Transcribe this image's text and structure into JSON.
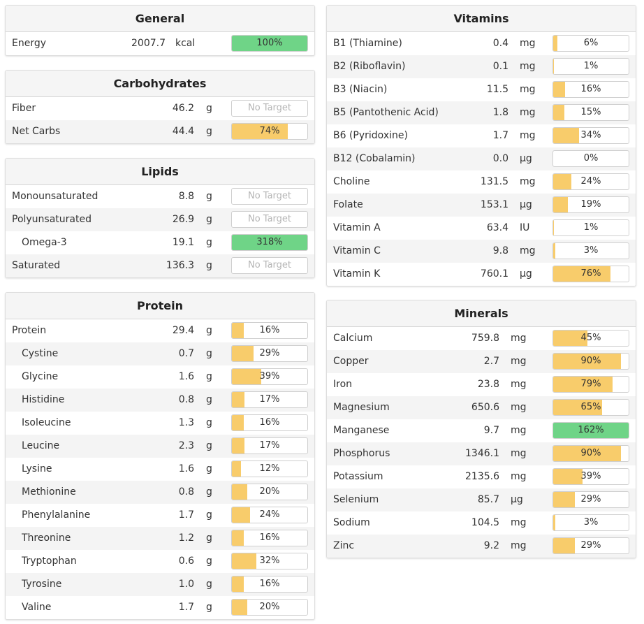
{
  "colors": {
    "green": "#6fd487",
    "orange": "#f8cc6b",
    "none": "#ffffff"
  },
  "general": {
    "title": "General",
    "rows": [
      {
        "name": "Energy",
        "amount": "2007.7",
        "unit": "kcal",
        "pct_label": "100%",
        "fill": 100,
        "color": "green",
        "sub": false
      }
    ]
  },
  "carbohydrates": {
    "title": "Carbohydrates",
    "rows": [
      {
        "name": "Fiber",
        "amount": "46.2",
        "unit": "g",
        "pct_label": "No Target",
        "fill": 0,
        "color": "none",
        "sub": false
      },
      {
        "name": "Net Carbs",
        "amount": "44.4",
        "unit": "g",
        "pct_label": "74%",
        "fill": 74,
        "color": "orange",
        "sub": false
      }
    ]
  },
  "lipids": {
    "title": "Lipids",
    "rows": [
      {
        "name": "Monounsaturated",
        "amount": "8.8",
        "unit": "g",
        "pct_label": "No Target",
        "fill": 0,
        "color": "none",
        "sub": false
      },
      {
        "name": "Polyunsaturated",
        "amount": "26.9",
        "unit": "g",
        "pct_label": "No Target",
        "fill": 0,
        "color": "none",
        "sub": false
      },
      {
        "name": "Omega-3",
        "amount": "19.1",
        "unit": "g",
        "pct_label": "318%",
        "fill": 100,
        "color": "green",
        "sub": true
      },
      {
        "name": "Saturated",
        "amount": "136.3",
        "unit": "g",
        "pct_label": "No Target",
        "fill": 0,
        "color": "none",
        "sub": false
      }
    ]
  },
  "protein": {
    "title": "Protein",
    "rows": [
      {
        "name": "Protein",
        "amount": "29.4",
        "unit": "g",
        "pct_label": "16%",
        "fill": 16,
        "color": "orange",
        "sub": false
      },
      {
        "name": "Cystine",
        "amount": "0.7",
        "unit": "g",
        "pct_label": "29%",
        "fill": 29,
        "color": "orange",
        "sub": true
      },
      {
        "name": "Glycine",
        "amount": "1.6",
        "unit": "g",
        "pct_label": "39%",
        "fill": 39,
        "color": "orange",
        "sub": true
      },
      {
        "name": "Histidine",
        "amount": "0.8",
        "unit": "g",
        "pct_label": "17%",
        "fill": 17,
        "color": "orange",
        "sub": true
      },
      {
        "name": "Isoleucine",
        "amount": "1.3",
        "unit": "g",
        "pct_label": "16%",
        "fill": 16,
        "color": "orange",
        "sub": true
      },
      {
        "name": "Leucine",
        "amount": "2.3",
        "unit": "g",
        "pct_label": "17%",
        "fill": 17,
        "color": "orange",
        "sub": true
      },
      {
        "name": "Lysine",
        "amount": "1.6",
        "unit": "g",
        "pct_label": "12%",
        "fill": 12,
        "color": "orange",
        "sub": true
      },
      {
        "name": "Methionine",
        "amount": "0.8",
        "unit": "g",
        "pct_label": "20%",
        "fill": 20,
        "color": "orange",
        "sub": true
      },
      {
        "name": "Phenylalanine",
        "amount": "1.7",
        "unit": "g",
        "pct_label": "24%",
        "fill": 24,
        "color": "orange",
        "sub": true
      },
      {
        "name": "Threonine",
        "amount": "1.2",
        "unit": "g",
        "pct_label": "16%",
        "fill": 16,
        "color": "orange",
        "sub": true
      },
      {
        "name": "Tryptophan",
        "amount": "0.6",
        "unit": "g",
        "pct_label": "32%",
        "fill": 32,
        "color": "orange",
        "sub": true
      },
      {
        "name": "Tyrosine",
        "amount": "1.0",
        "unit": "g",
        "pct_label": "16%",
        "fill": 16,
        "color": "orange",
        "sub": true
      },
      {
        "name": "Valine",
        "amount": "1.7",
        "unit": "g",
        "pct_label": "20%",
        "fill": 20,
        "color": "orange",
        "sub": true
      }
    ]
  },
  "vitamins": {
    "title": "Vitamins",
    "rows": [
      {
        "name": "B1 (Thiamine)",
        "amount": "0.4",
        "unit": "mg",
        "pct_label": "6%",
        "fill": 6,
        "color": "orange",
        "sub": false
      },
      {
        "name": "B2 (Riboflavin)",
        "amount": "0.1",
        "unit": "mg",
        "pct_label": "1%",
        "fill": 1,
        "color": "orange",
        "sub": false
      },
      {
        "name": "B3 (Niacin)",
        "amount": "11.5",
        "unit": "mg",
        "pct_label": "16%",
        "fill": 16,
        "color": "orange",
        "sub": false
      },
      {
        "name": "B5 (Pantothenic Acid)",
        "amount": "1.8",
        "unit": "mg",
        "pct_label": "15%",
        "fill": 15,
        "color": "orange",
        "sub": false
      },
      {
        "name": "B6 (Pyridoxine)",
        "amount": "1.7",
        "unit": "mg",
        "pct_label": "34%",
        "fill": 34,
        "color": "orange",
        "sub": false
      },
      {
        "name": "B12 (Cobalamin)",
        "amount": "0.0",
        "unit": "µg",
        "pct_label": "0%",
        "fill": 0,
        "color": "orange",
        "sub": false
      },
      {
        "name": "Choline",
        "amount": "131.5",
        "unit": "mg",
        "pct_label": "24%",
        "fill": 24,
        "color": "orange",
        "sub": false
      },
      {
        "name": "Folate",
        "amount": "153.1",
        "unit": "µg",
        "pct_label": "19%",
        "fill": 19,
        "color": "orange",
        "sub": false
      },
      {
        "name": "Vitamin A",
        "amount": "63.4",
        "unit": "IU",
        "pct_label": "1%",
        "fill": 1,
        "color": "orange",
        "sub": false
      },
      {
        "name": "Vitamin C",
        "amount": "9.8",
        "unit": "mg",
        "pct_label": "3%",
        "fill": 3,
        "color": "orange",
        "sub": false
      },
      {
        "name": "Vitamin K",
        "amount": "760.1",
        "unit": "µg",
        "pct_label": "76%",
        "fill": 76,
        "color": "orange",
        "sub": false
      }
    ]
  },
  "minerals": {
    "title": "Minerals",
    "rows": [
      {
        "name": "Calcium",
        "amount": "759.8",
        "unit": "mg",
        "pct_label": "45%",
        "fill": 45,
        "color": "orange",
        "sub": false
      },
      {
        "name": "Copper",
        "amount": "2.7",
        "unit": "mg",
        "pct_label": "90%",
        "fill": 90,
        "color": "orange",
        "sub": false
      },
      {
        "name": "Iron",
        "amount": "23.8",
        "unit": "mg",
        "pct_label": "79%",
        "fill": 79,
        "color": "orange",
        "sub": false
      },
      {
        "name": "Magnesium",
        "amount": "650.6",
        "unit": "mg",
        "pct_label": "65%",
        "fill": 65,
        "color": "orange",
        "sub": false
      },
      {
        "name": "Manganese",
        "amount": "9.7",
        "unit": "mg",
        "pct_label": "162%",
        "fill": 100,
        "color": "green",
        "sub": false
      },
      {
        "name": "Phosphorus",
        "amount": "1346.1",
        "unit": "mg",
        "pct_label": "90%",
        "fill": 90,
        "color": "orange",
        "sub": false
      },
      {
        "name": "Potassium",
        "amount": "2135.6",
        "unit": "mg",
        "pct_label": "39%",
        "fill": 39,
        "color": "orange",
        "sub": false
      },
      {
        "name": "Selenium",
        "amount": "85.7",
        "unit": "µg",
        "pct_label": "29%",
        "fill": 29,
        "color": "orange",
        "sub": false
      },
      {
        "name": "Sodium",
        "amount": "104.5",
        "unit": "mg",
        "pct_label": "3%",
        "fill": 3,
        "color": "orange",
        "sub": false
      },
      {
        "name": "Zinc",
        "amount": "9.2",
        "unit": "mg",
        "pct_label": "29%",
        "fill": 29,
        "color": "orange",
        "sub": false
      }
    ]
  }
}
